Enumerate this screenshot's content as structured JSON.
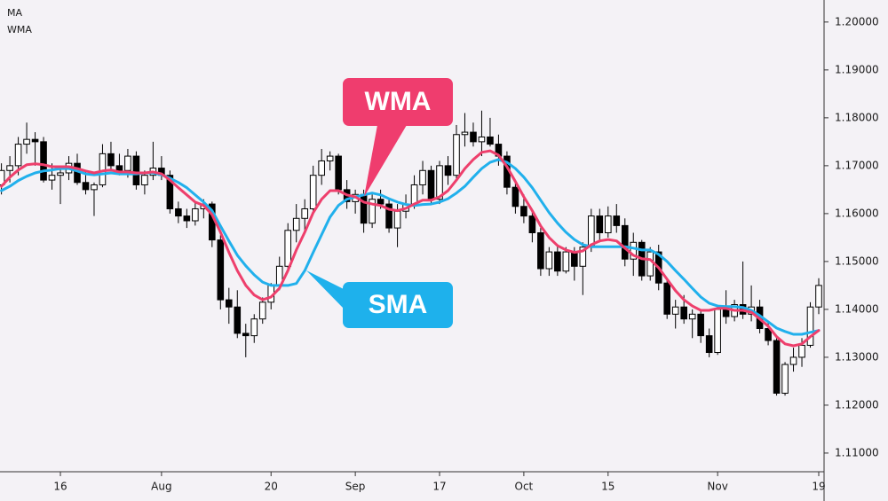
{
  "chart_data": {
    "type": "candlestick",
    "categories": [
      null,
      null,
      null,
      null,
      null,
      null,
      null,
      "16",
      null,
      null,
      null,
      null,
      null,
      null,
      null,
      null,
      null,
      null,
      null,
      "Aug",
      null,
      null,
      null,
      null,
      null,
      null,
      null,
      null,
      null,
      null,
      null,
      null,
      "20",
      null,
      null,
      null,
      null,
      null,
      null,
      null,
      null,
      null,
      "Sep",
      null,
      null,
      null,
      null,
      null,
      null,
      null,
      null,
      null,
      "17",
      null,
      null,
      null,
      null,
      null,
      null,
      null,
      null,
      null,
      "Oct",
      null,
      null,
      null,
      null,
      null,
      null,
      null,
      null,
      null,
      "15",
      null,
      null,
      null,
      null,
      null,
      null,
      null,
      null,
      null,
      null,
      null,
      null,
      "Nov",
      null,
      null,
      null,
      null,
      null,
      null,
      null,
      null,
      null,
      null,
      null,
      "19"
    ],
    "open": [
      1.166,
      1.169,
      1.17,
      1.1745,
      1.1755,
      1.175,
      1.167,
      1.168,
      1.1685,
      1.1705,
      1.1665,
      1.165,
      1.166,
      1.1725,
      1.17,
      1.169,
      1.172,
      1.166,
      1.168,
      1.1695,
      1.168,
      1.161,
      1.1595,
      1.1585,
      1.161,
      1.162,
      1.1545,
      1.142,
      1.1405,
      1.135,
      1.1345,
      1.138,
      1.1415,
      1.145,
      1.149,
      1.1565,
      1.159,
      1.161,
      1.168,
      1.171,
      1.172,
      1.165,
      1.1625,
      1.164,
      1.158,
      1.163,
      1.162,
      1.157,
      1.1605,
      1.162,
      1.166,
      1.169,
      1.163,
      1.17,
      1.168,
      1.1765,
      1.177,
      1.175,
      1.176,
      1.1745,
      1.172,
      1.1655,
      1.1615,
      1.1595,
      1.156,
      1.1485,
      1.152,
      1.148,
      1.152,
      1.149,
      1.153,
      1.1595,
      1.156,
      1.1595,
      1.1575,
      1.1505,
      1.154,
      1.147,
      1.152,
      1.1455,
      1.139,
      1.1405,
      1.138,
      1.139,
      1.1345,
      1.131,
      1.14,
      1.1385,
      1.141,
      1.139,
      1.1405,
      1.136,
      1.1335,
      1.1225,
      1.1285,
      1.13,
      1.1325,
      1.1405
    ],
    "high": [
      1.1705,
      1.172,
      1.176,
      1.179,
      1.177,
      1.176,
      1.1705,
      1.17,
      1.172,
      1.1725,
      1.169,
      1.1665,
      1.1745,
      1.175,
      1.1725,
      1.1735,
      1.173,
      1.169,
      1.175,
      1.172,
      1.169,
      1.1625,
      1.161,
      1.1625,
      1.163,
      1.1625,
      1.1555,
      1.1445,
      1.144,
      1.137,
      1.139,
      1.1425,
      1.1455,
      1.151,
      1.158,
      1.162,
      1.163,
      1.17,
      1.1735,
      1.173,
      1.1725,
      1.167,
      1.165,
      1.165,
      1.164,
      1.165,
      1.163,
      1.162,
      1.164,
      1.168,
      1.171,
      1.17,
      1.171,
      1.172,
      1.1785,
      1.181,
      1.179,
      1.1815,
      1.18,
      1.1765,
      1.173,
      1.167,
      1.164,
      1.161,
      1.157,
      1.153,
      1.1535,
      1.153,
      1.153,
      1.154,
      1.161,
      1.161,
      1.1615,
      1.162,
      1.159,
      1.156,
      1.1545,
      1.153,
      1.1535,
      1.1465,
      1.142,
      1.143,
      1.14,
      1.14,
      1.136,
      1.141,
      1.144,
      1.142,
      1.15,
      1.145,
      1.142,
      1.1375,
      1.134,
      1.129,
      1.132,
      1.134,
      1.1415,
      1.1465
    ],
    "low": [
      1.164,
      1.1665,
      1.168,
      1.1725,
      1.17,
      1.1665,
      1.165,
      1.162,
      1.167,
      1.166,
      1.164,
      1.1595,
      1.1655,
      1.169,
      1.168,
      1.1675,
      1.165,
      1.164,
      1.167,
      1.167,
      1.16,
      1.158,
      1.157,
      1.1575,
      1.159,
      1.153,
      1.14,
      1.137,
      1.134,
      1.13,
      1.133,
      1.137,
      1.14,
      1.144,
      1.148,
      1.154,
      1.156,
      1.16,
      1.166,
      1.169,
      1.164,
      1.161,
      1.16,
      1.156,
      1.157,
      1.161,
      1.156,
      1.153,
      1.159,
      1.161,
      1.164,
      1.162,
      1.162,
      1.166,
      1.167,
      1.174,
      1.174,
      1.172,
      1.174,
      1.17,
      1.164,
      1.16,
      1.158,
      1.154,
      1.147,
      1.147,
      1.147,
      1.1475,
      1.146,
      1.143,
      1.152,
      1.154,
      1.155,
      1.156,
      1.149,
      1.147,
      1.146,
      1.146,
      1.144,
      1.138,
      1.136,
      1.137,
      1.134,
      1.133,
      1.13,
      1.1305,
      1.137,
      1.1375,
      1.138,
      1.1375,
      1.135,
      1.1325,
      1.122,
      1.122,
      1.127,
      1.128,
      1.132,
      1.139
    ],
    "close": [
      1.169,
      1.17,
      1.1745,
      1.1755,
      1.175,
      1.167,
      1.168,
      1.1685,
      1.1705,
      1.1665,
      1.165,
      1.166,
      1.1725,
      1.17,
      1.169,
      1.172,
      1.166,
      1.168,
      1.1695,
      1.168,
      1.161,
      1.1595,
      1.1585,
      1.161,
      1.162,
      1.1545,
      1.142,
      1.1405,
      1.135,
      1.1345,
      1.138,
      1.1415,
      1.145,
      1.149,
      1.1565,
      1.159,
      1.161,
      1.168,
      1.171,
      1.172,
      1.165,
      1.1625,
      1.164,
      1.158,
      1.163,
      1.162,
      1.157,
      1.1605,
      1.162,
      1.166,
      1.169,
      1.163,
      1.17,
      1.168,
      1.1765,
      1.177,
      1.175,
      1.176,
      1.1745,
      1.172,
      1.1655,
      1.1615,
      1.1595,
      1.156,
      1.1485,
      1.152,
      1.148,
      1.152,
      1.149,
      1.153,
      1.1595,
      1.156,
      1.1595,
      1.1575,
      1.1505,
      1.154,
      1.147,
      1.152,
      1.1455,
      1.139,
      1.1405,
      1.138,
      1.139,
      1.1345,
      1.131,
      1.14,
      1.1385,
      1.141,
      1.139,
      1.1405,
      1.136,
      1.1335,
      1.1225,
      1.1285,
      1.13,
      1.1325,
      1.1405,
      1.145
    ],
    "up_color": "#ffffff",
    "down_color": "#000000",
    "series": [
      {
        "name": "MA",
        "color": "#21b0ec",
        "values": [
          1.1648,
          1.1657,
          1.1669,
          1.1678,
          1.1685,
          1.1689,
          1.1691,
          1.1694,
          1.1694,
          1.1689,
          1.1683,
          1.1681,
          1.1683,
          1.1685,
          1.1683,
          1.1683,
          1.1683,
          1.1685,
          1.1685,
          1.1681,
          1.1674,
          1.1665,
          1.1654,
          1.1639,
          1.1624,
          1.1606,
          1.1574,
          1.1543,
          1.1513,
          1.1491,
          1.1472,
          1.1457,
          1.145,
          1.145,
          1.145,
          1.1454,
          1.1481,
          1.1519,
          1.1556,
          1.1593,
          1.1617,
          1.163,
          1.1635,
          1.1639,
          1.1643,
          1.1639,
          1.1631,
          1.1624,
          1.1619,
          1.1617,
          1.1619,
          1.162,
          1.1624,
          1.1631,
          1.1643,
          1.1657,
          1.1676,
          1.1694,
          1.1707,
          1.1713,
          1.1707,
          1.1694,
          1.1676,
          1.1654,
          1.1628,
          1.1602,
          1.158,
          1.1561,
          1.1546,
          1.1535,
          1.1531,
          1.1531,
          1.1531,
          1.1531,
          1.1531,
          1.1528,
          1.1524,
          1.1524,
          1.1515,
          1.15,
          1.1481,
          1.1463,
          1.1444,
          1.1426,
          1.1413,
          1.1407,
          1.1406,
          1.1406,
          1.1404,
          1.1398,
          1.1387,
          1.1374,
          1.1361,
          1.1354,
          1.1348,
          1.1348,
          1.1352,
          1.1356
        ]
      },
      {
        "name": "WMA",
        "color": "#ee3f6c",
        "values": [
          1.1657,
          1.1676,
          1.1691,
          1.1702,
          1.1704,
          1.1702,
          1.1698,
          1.1698,
          1.1698,
          1.1694,
          1.1689,
          1.1685,
          1.1689,
          1.1691,
          1.1687,
          1.1687,
          1.1685,
          1.1685,
          1.1687,
          1.1683,
          1.167,
          1.1654,
          1.1639,
          1.1624,
          1.1617,
          1.1598,
          1.1561,
          1.1519,
          1.1481,
          1.145,
          1.143,
          1.142,
          1.1426,
          1.1444,
          1.1481,
          1.1524,
          1.1561,
          1.1602,
          1.163,
          1.1648,
          1.1648,
          1.1639,
          1.1635,
          1.1624,
          1.162,
          1.1617,
          1.1609,
          1.1606,
          1.1611,
          1.162,
          1.1628,
          1.1628,
          1.1635,
          1.1648,
          1.167,
          1.1694,
          1.1713,
          1.1728,
          1.1731,
          1.1722,
          1.1698,
          1.1667,
          1.1635,
          1.1606,
          1.1574,
          1.155,
          1.1533,
          1.1524,
          1.1519,
          1.1522,
          1.1535,
          1.1543,
          1.1546,
          1.1543,
          1.1528,
          1.1513,
          1.1506,
          1.1504,
          1.1487,
          1.1463,
          1.1439,
          1.142,
          1.1407,
          1.1398,
          1.1398,
          1.1402,
          1.1402,
          1.1398,
          1.1398,
          1.1394,
          1.138,
          1.1365,
          1.1343,
          1.1328,
          1.1324,
          1.1328,
          1.1343,
          1.1356
        ]
      }
    ],
    "annotations": [
      {
        "text": "WMA",
        "color": "#ef3d6e"
      },
      {
        "text": "SMA",
        "color": "#1eb1ec"
      }
    ],
    "ylim": [
      1.1061,
      1.2046
    ],
    "yticks": [
      {
        "value": 1.11,
        "label": "1.11000"
      },
      {
        "value": 1.12,
        "label": "1.12000"
      },
      {
        "value": 1.13,
        "label": "1.13000"
      },
      {
        "value": 1.14,
        "label": "1.14000"
      },
      {
        "value": 1.15,
        "label": "1.15000"
      },
      {
        "value": 1.16,
        "label": "1.16000"
      },
      {
        "value": 1.17,
        "label": "1.17000"
      },
      {
        "value": 1.18,
        "label": "1.18000"
      },
      {
        "value": 1.19,
        "label": "1.19000"
      },
      {
        "value": 1.2,
        "label": "1.20000"
      }
    ],
    "legend": "top-left"
  }
}
